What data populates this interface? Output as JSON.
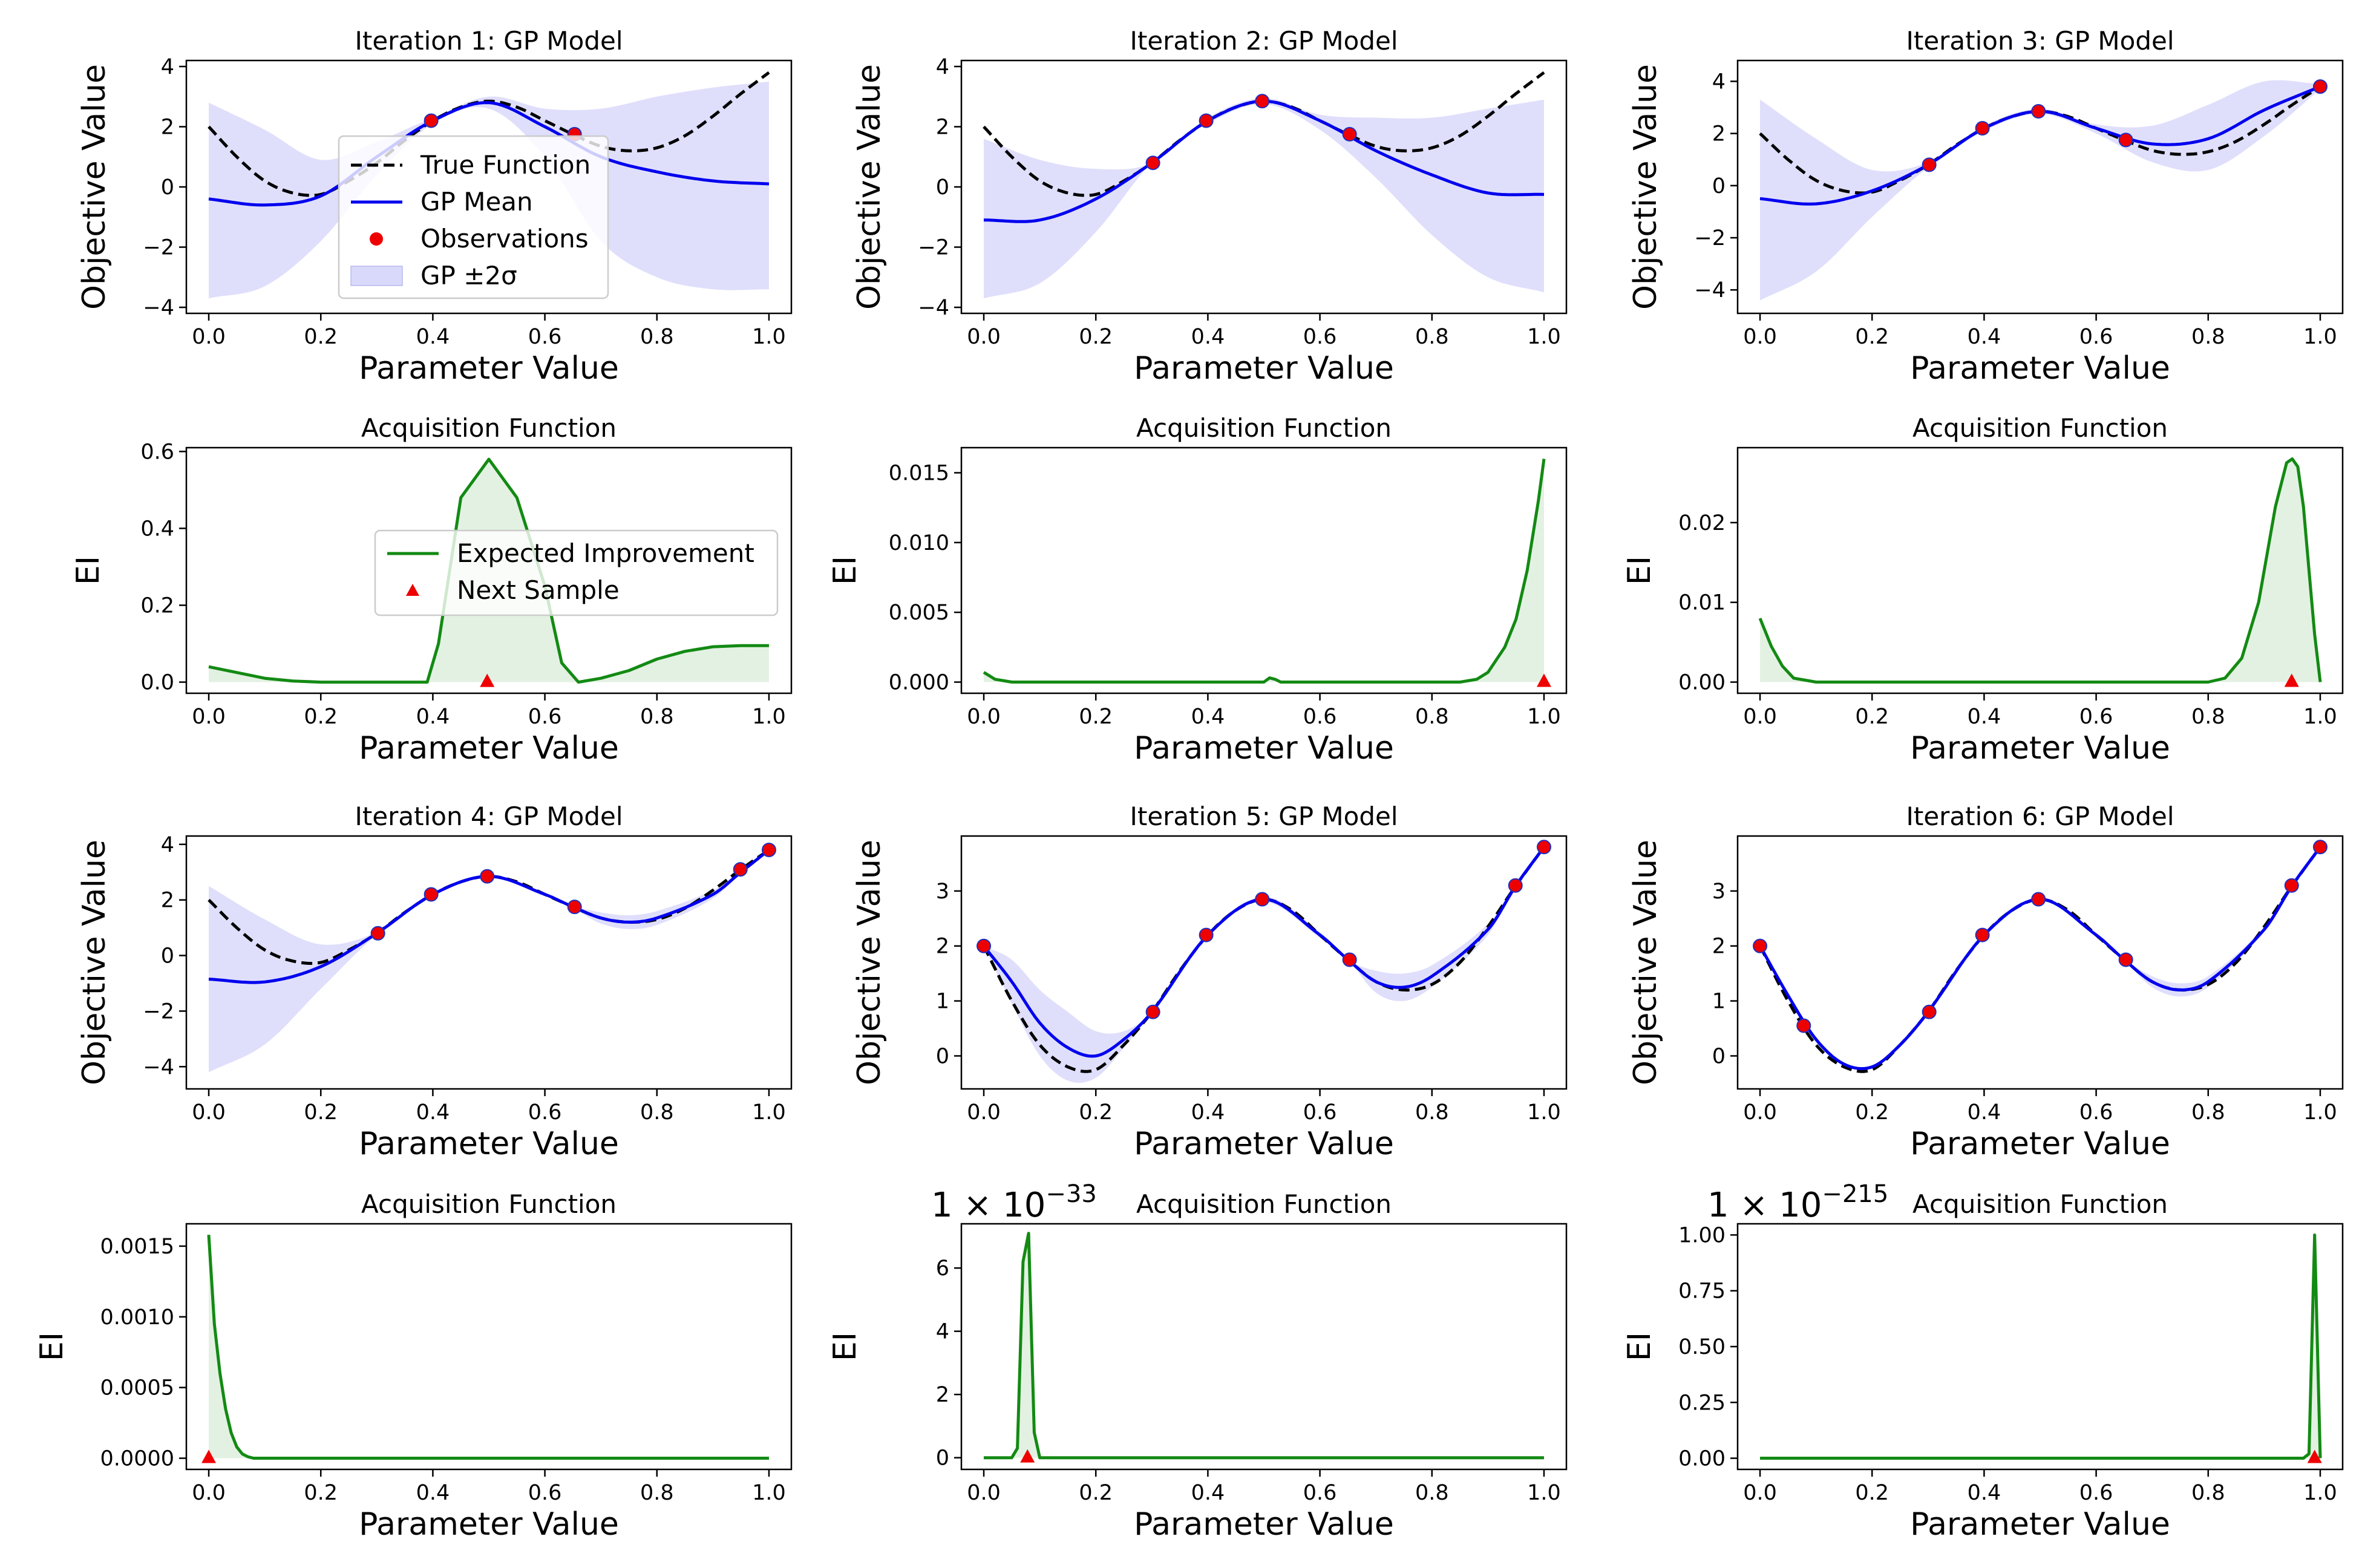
{
  "figure": {
    "legend_gp": {
      "true_function": "True Function",
      "gp_mean": "GP Mean",
      "observations": "Observations",
      "gp_band": "GP ±2σ"
    },
    "legend_acq": {
      "ei": "Expected Improvement",
      "next_sample": "Next Sample"
    },
    "colors": {
      "true_function": "#000000",
      "gp_mean": "#0000ee",
      "gp_band": "#d9d9fb",
      "observation": "#ee0000",
      "ei_line": "#138a13",
      "ei_fill": "#e3f1e3",
      "next_sample": "#ee0000"
    }
  },
  "chart_data": [
    {
      "type": "line",
      "panel": "gp",
      "title": "Iteration 1: GP Model",
      "xlabel": "Parameter Value",
      "ylabel": "Objective Value",
      "xlim": [
        -0.04,
        1.04
      ],
      "ylim": [
        -4.2,
        4.2
      ],
      "xticks": [
        0,
        0.2,
        0.4,
        0.6,
        0.8,
        1.0
      ],
      "xtick_labels": [
        "0.0",
        "0.2",
        "0.4",
        "0.6",
        "0.8",
        "1.0"
      ],
      "yticks": [
        -4,
        -2,
        0,
        2,
        4
      ],
      "ytick_labels": [
        "−4",
        "−2",
        "0",
        "2",
        "4"
      ],
      "legend": "center",
      "x": [
        0.0,
        0.1,
        0.2,
        0.3,
        0.4,
        0.5,
        0.6,
        0.7,
        0.8,
        0.9,
        1.0
      ],
      "gp_mean": [
        -0.4,
        -0.6,
        -0.3,
        1.0,
        2.2,
        2.8,
        2.0,
        1.0,
        0.5,
        0.2,
        0.1
      ],
      "gp_upper": [
        2.8,
        1.9,
        0.9,
        1.5,
        2.3,
        3.0,
        2.6,
        2.6,
        3.0,
        3.3,
        3.5
      ],
      "gp_lower": [
        -3.7,
        -3.3,
        -1.8,
        0.4,
        2.1,
        2.6,
        1.0,
        -1.8,
        -3.0,
        -3.4,
        -3.4
      ],
      "observations": {
        "x": [
          0.397,
          0.653
        ],
        "y": [
          2.2,
          1.75
        ]
      }
    },
    {
      "type": "line",
      "panel": "gp",
      "title": "Iteration 2: GP Model",
      "xlabel": "Parameter Value",
      "ylabel": "Objective Value",
      "xlim": [
        -0.04,
        1.04
      ],
      "ylim": [
        -4.2,
        4.2
      ],
      "xticks": [
        0,
        0.2,
        0.4,
        0.6,
        0.8,
        1.0
      ],
      "xtick_labels": [
        "0.0",
        "0.2",
        "0.4",
        "0.6",
        "0.8",
        "1.0"
      ],
      "yticks": [
        -4,
        -2,
        0,
        2,
        4
      ],
      "ytick_labels": [
        "−4",
        "−2",
        "0",
        "2",
        "4"
      ],
      "x": [
        0.0,
        0.1,
        0.2,
        0.3,
        0.4,
        0.5,
        0.6,
        0.7,
        0.8,
        0.9,
        1.0
      ],
      "gp_mean": [
        -1.1,
        -1.1,
        -0.4,
        0.8,
        2.2,
        2.85,
        2.2,
        1.2,
        0.4,
        -0.2,
        -0.25
      ],
      "gp_upper": [
        1.6,
        0.9,
        0.6,
        0.8,
        2.3,
        2.95,
        2.4,
        2.3,
        2.3,
        2.6,
        2.9
      ],
      "gp_lower": [
        -3.7,
        -3.2,
        -1.5,
        0.8,
        2.1,
        2.75,
        1.9,
        0.3,
        -1.6,
        -3.0,
        -3.5
      ],
      "observations": {
        "x": [
          0.302,
          0.397,
          0.497,
          0.653
        ],
        "y": [
          0.8,
          2.2,
          2.85,
          1.75
        ]
      }
    },
    {
      "type": "line",
      "panel": "gp",
      "title": "Iteration 3: GP Model",
      "xlabel": "Parameter Value",
      "ylabel": "Objective Value",
      "xlim": [
        -0.04,
        1.04
      ],
      "ylim": [
        -4.9,
        4.8
      ],
      "xticks": [
        0,
        0.2,
        0.4,
        0.6,
        0.8,
        1.0
      ],
      "xtick_labels": [
        "0.0",
        "0.2",
        "0.4",
        "0.6",
        "0.8",
        "1.0"
      ],
      "yticks": [
        -4,
        -2,
        0,
        2,
        4
      ],
      "ytick_labels": [
        "−4",
        "−2",
        "0",
        "2",
        "4"
      ],
      "x": [
        0.0,
        0.1,
        0.2,
        0.3,
        0.4,
        0.5,
        0.6,
        0.7,
        0.8,
        0.9,
        1.0
      ],
      "gp_mean": [
        -0.5,
        -0.7,
        -0.2,
        0.8,
        2.2,
        2.85,
        2.2,
        1.6,
        1.8,
        2.9,
        3.8
      ],
      "gp_upper": [
        3.3,
        1.8,
        0.6,
        0.9,
        2.3,
        2.95,
        2.35,
        2.3,
        3.1,
        4.0,
        3.9
      ],
      "gp_lower": [
        -4.4,
        -3.3,
        -1.2,
        0.7,
        2.1,
        2.75,
        2.0,
        0.9,
        0.6,
        1.9,
        3.7
      ],
      "observations": {
        "x": [
          0.302,
          0.397,
          0.497,
          0.653,
          1.0
        ],
        "y": [
          0.8,
          2.2,
          2.85,
          1.75,
          3.8
        ]
      }
    },
    {
      "type": "area",
      "panel": "acq",
      "title": "Acquisition Function",
      "xlabel": "Parameter Value",
      "ylabel": "EI",
      "xlim": [
        -0.04,
        1.04
      ],
      "ylim": [
        -0.029,
        0.61
      ],
      "xticks": [
        0,
        0.2,
        0.4,
        0.6,
        0.8,
        1.0
      ],
      "xtick_labels": [
        "0.0",
        "0.2",
        "0.4",
        "0.6",
        "0.8",
        "1.0"
      ],
      "yticks": [
        0,
        0.2,
        0.4,
        0.6
      ],
      "ytick_labels": [
        "0.0",
        "0.2",
        "0.4",
        "0.6"
      ],
      "legend": "center-right",
      "x": [
        0.0,
        0.05,
        0.1,
        0.15,
        0.2,
        0.3,
        0.39,
        0.41,
        0.45,
        0.5,
        0.55,
        0.6,
        0.63,
        0.66,
        0.7,
        0.75,
        0.8,
        0.85,
        0.9,
        0.95,
        1.0
      ],
      "values": [
        0.04,
        0.025,
        0.01,
        0.003,
        0.0,
        0.0,
        0.0,
        0.1,
        0.48,
        0.58,
        0.48,
        0.25,
        0.05,
        0.0,
        0.01,
        0.03,
        0.06,
        0.08,
        0.092,
        0.095,
        0.095
      ],
      "next_sample": {
        "x": 0.497,
        "y": 0.0
      }
    },
    {
      "type": "area",
      "panel": "acq",
      "title": "Acquisition Function",
      "xlabel": "Parameter Value",
      "ylabel": "EI",
      "xlim": [
        -0.04,
        1.04
      ],
      "ylim": [
        -0.0008,
        0.0168
      ],
      "xticks": [
        0,
        0.2,
        0.4,
        0.6,
        0.8,
        1.0
      ],
      "xtick_labels": [
        "0.0",
        "0.2",
        "0.4",
        "0.6",
        "0.8",
        "1.0"
      ],
      "yticks": [
        0,
        0.005,
        0.01,
        0.015
      ],
      "ytick_labels": [
        "0.000",
        "0.005",
        "0.010",
        "0.015"
      ],
      "x": [
        0.0,
        0.02,
        0.05,
        0.1,
        0.5,
        0.51,
        0.52,
        0.53,
        0.8,
        0.85,
        0.88,
        0.9,
        0.93,
        0.95,
        0.97,
        0.99,
        1.0
      ],
      "values": [
        0.0007,
        0.0002,
        0.0,
        0.0,
        0.0,
        0.0003,
        0.0002,
        0.0,
        0.0,
        0.0,
        0.0002,
        0.0007,
        0.0025,
        0.0045,
        0.008,
        0.013,
        0.016
      ],
      "next_sample": {
        "x": 1.0,
        "y": 0.0
      }
    },
    {
      "type": "area",
      "panel": "acq",
      "title": "Acquisition Function",
      "xlabel": "Parameter Value",
      "ylabel": "EI",
      "xlim": [
        -0.04,
        1.04
      ],
      "ylim": [
        -0.0014,
        0.0294
      ],
      "xticks": [
        0,
        0.2,
        0.4,
        0.6,
        0.8,
        1.0
      ],
      "xtick_labels": [
        "0.0",
        "0.2",
        "0.4",
        "0.6",
        "0.8",
        "1.0"
      ],
      "yticks": [
        0,
        0.01,
        0.02
      ],
      "ytick_labels": [
        "0.00",
        "0.01",
        "0.02"
      ],
      "x": [
        0.0,
        0.02,
        0.04,
        0.06,
        0.1,
        0.8,
        0.83,
        0.86,
        0.89,
        0.92,
        0.94,
        0.95,
        0.96,
        0.97,
        0.98,
        0.99,
        1.0
      ],
      "values": [
        0.008,
        0.0045,
        0.002,
        0.0005,
        0.0,
        0.0,
        0.0005,
        0.003,
        0.01,
        0.022,
        0.0275,
        0.028,
        0.027,
        0.022,
        0.014,
        0.006,
        0.0
      ],
      "next_sample": {
        "x": 0.949,
        "y": 0.0
      }
    },
    {
      "type": "line",
      "panel": "gp",
      "title": "Iteration 4: GP Model",
      "xlabel": "Parameter Value",
      "ylabel": "Objective Value",
      "xlim": [
        -0.04,
        1.04
      ],
      "ylim": [
        -4.8,
        4.3
      ],
      "xticks": [
        0,
        0.2,
        0.4,
        0.6,
        0.8,
        1.0
      ],
      "xtick_labels": [
        "0.0",
        "0.2",
        "0.4",
        "0.6",
        "0.8",
        "1.0"
      ],
      "yticks": [
        -4,
        -2,
        0,
        2,
        4
      ],
      "ytick_labels": [
        "−4",
        "−2",
        "0",
        "2",
        "4"
      ],
      "x": [
        0.0,
        0.1,
        0.2,
        0.3,
        0.4,
        0.5,
        0.6,
        0.65,
        0.7,
        0.75,
        0.8,
        0.9,
        0.95,
        1.0
      ],
      "gp_mean": [
        -0.85,
        -0.95,
        -0.4,
        0.8,
        2.2,
        2.85,
        2.2,
        1.75,
        1.35,
        1.2,
        1.35,
        2.2,
        3.0,
        3.8
      ],
      "gp_upper": [
        2.5,
        1.3,
        0.4,
        0.85,
        2.25,
        2.9,
        2.25,
        1.8,
        1.55,
        1.45,
        1.6,
        2.35,
        3.05,
        3.85
      ],
      "gp_lower": [
        -4.2,
        -3.2,
        -1.2,
        0.75,
        2.15,
        2.8,
        2.15,
        1.7,
        1.15,
        0.95,
        1.1,
        2.05,
        2.95,
        3.75
      ],
      "observations": {
        "x": [
          0.302,
          0.397,
          0.497,
          0.653,
          0.949,
          1.0
        ],
        "y": [
          0.8,
          2.2,
          2.85,
          1.75,
          3.1,
          3.8
        ]
      }
    },
    {
      "type": "line",
      "panel": "gp",
      "title": "Iteration 5: GP Model",
      "xlabel": "Parameter Value",
      "ylabel": "Objective Value",
      "xlim": [
        -0.04,
        1.04
      ],
      "ylim": [
        -0.6,
        4.0
      ],
      "xticks": [
        0,
        0.2,
        0.4,
        0.6,
        0.8,
        1.0
      ],
      "xtick_labels": [
        "0.0",
        "0.2",
        "0.4",
        "0.6",
        "0.8",
        "1.0"
      ],
      "yticks": [
        0,
        1,
        2,
        3
      ],
      "ytick_labels": [
        "0",
        "1",
        "2",
        "3"
      ],
      "x": [
        0.0,
        0.05,
        0.1,
        0.15,
        0.2,
        0.25,
        0.3,
        0.4,
        0.5,
        0.6,
        0.65,
        0.7,
        0.75,
        0.8,
        0.9,
        0.95,
        1.0
      ],
      "gp_mean": [
        2.0,
        1.35,
        0.6,
        0.15,
        0.0,
        0.3,
        0.8,
        2.2,
        2.85,
        2.2,
        1.75,
        1.35,
        1.25,
        1.45,
        2.3,
        3.1,
        3.8
      ],
      "gp_upper": [
        2.0,
        1.75,
        1.2,
        0.8,
        0.45,
        0.45,
        0.8,
        2.2,
        2.9,
        2.25,
        1.75,
        1.55,
        1.5,
        1.65,
        2.4,
        3.1,
        3.8
      ],
      "gp_lower": [
        2.0,
        0.95,
        0.0,
        -0.45,
        -0.4,
        0.15,
        0.8,
        2.2,
        2.8,
        2.15,
        1.75,
        1.15,
        1.0,
        1.25,
        2.2,
        3.1,
        3.8
      ],
      "observations": {
        "x": [
          0.0,
          0.302,
          0.397,
          0.497,
          0.653,
          0.949,
          1.0
        ],
        "y": [
          2.0,
          0.8,
          2.2,
          2.85,
          1.75,
          3.1,
          3.8
        ]
      }
    },
    {
      "type": "line",
      "panel": "gp",
      "title": "Iteration 6: GP Model",
      "xlabel": "Parameter Value",
      "ylabel": "Objective Value",
      "xlim": [
        -0.04,
        1.04
      ],
      "ylim": [
        -0.6,
        4.0
      ],
      "xticks": [
        0,
        0.2,
        0.4,
        0.6,
        0.8,
        1.0
      ],
      "xtick_labels": [
        "0.0",
        "0.2",
        "0.4",
        "0.6",
        "0.8",
        "1.0"
      ],
      "yticks": [
        0,
        1,
        2,
        3
      ],
      "ytick_labels": [
        "0",
        "1",
        "2",
        "3"
      ],
      "x": [
        0.0,
        0.05,
        0.1,
        0.15,
        0.2,
        0.25,
        0.3,
        0.4,
        0.5,
        0.6,
        0.65,
        0.7,
        0.75,
        0.8,
        0.9,
        0.95,
        1.0
      ],
      "gp_mean": [
        2.0,
        1.1,
        0.3,
        -0.15,
        -0.2,
        0.2,
        0.8,
        2.2,
        2.85,
        2.2,
        1.75,
        1.35,
        1.2,
        1.35,
        2.3,
        3.1,
        3.8
      ],
      "gp_upper": [
        2.0,
        1.12,
        0.32,
        -0.13,
        -0.18,
        0.22,
        0.82,
        2.22,
        2.87,
        2.22,
        1.77,
        1.45,
        1.32,
        1.45,
        2.34,
        3.1,
        3.8
      ],
      "gp_lower": [
        2.0,
        1.08,
        0.28,
        -0.17,
        -0.22,
        0.18,
        0.78,
        2.18,
        2.83,
        2.18,
        1.73,
        1.25,
        1.08,
        1.25,
        2.26,
        3.1,
        3.8
      ],
      "observations": {
        "x": [
          0.0,
          0.078,
          0.302,
          0.397,
          0.497,
          0.653,
          0.949,
          1.0
        ],
        "y": [
          2.0,
          0.55,
          0.8,
          2.2,
          2.85,
          1.75,
          3.1,
          3.8
        ]
      }
    },
    {
      "type": "area",
      "panel": "acq",
      "title": "Acquisition Function",
      "xlabel": "Parameter Value",
      "ylabel": "EI",
      "xlim": [
        -0.04,
        1.04
      ],
      "ylim": [
        -7.9e-05,
        0.001658
      ],
      "xticks": [
        0,
        0.2,
        0.4,
        0.6,
        0.8,
        1.0
      ],
      "xtick_labels": [
        "0.0",
        "0.2",
        "0.4",
        "0.6",
        "0.8",
        "1.0"
      ],
      "yticks": [
        0,
        0.0005,
        0.001,
        0.0015
      ],
      "ytick_labels": [
        "0.0000",
        "0.0005",
        "0.0010",
        "0.0015"
      ],
      "x": [
        0.0,
        0.01,
        0.02,
        0.03,
        0.04,
        0.05,
        0.06,
        0.07,
        0.08,
        1.0
      ],
      "values": [
        0.00158,
        0.00095,
        0.0006,
        0.00035,
        0.00018,
        8e-05,
        3e-05,
        1e-05,
        0.0,
        0.0
      ],
      "next_sample": {
        "x": 0.0,
        "y": 0.0
      }
    },
    {
      "type": "area",
      "panel": "acq",
      "title": "Acquisition Function",
      "xlabel": "Parameter Value",
      "ylabel": "EI",
      "offset": "1 × 10−33",
      "xlim": [
        -0.04,
        1.04
      ],
      "ylim": [
        -0.37,
        7.4
      ],
      "xticks": [
        0,
        0.2,
        0.4,
        0.6,
        0.8,
        1.0
      ],
      "xtick_labels": [
        "0.0",
        "0.2",
        "0.4",
        "0.6",
        "0.8",
        "1.0"
      ],
      "yticks": [
        0,
        2,
        4,
        6
      ],
      "ytick_labels": [
        "0",
        "2",
        "4",
        "6"
      ],
      "x": [
        0.0,
        0.05,
        0.06,
        0.07,
        0.08,
        0.09,
        0.1,
        1.0
      ],
      "values": [
        0.0,
        0.0,
        0.3,
        6.2,
        7.1,
        0.8,
        0.0,
        0.0
      ],
      "next_sample": {
        "x": 0.078,
        "y": 0.0
      }
    },
    {
      "type": "area",
      "panel": "acq",
      "title": "Acquisition Function",
      "xlabel": "Parameter Value",
      "ylabel": "EI",
      "offset": "1 × 10−215",
      "xlim": [
        -0.04,
        1.04
      ],
      "ylim": [
        -0.05,
        1.05
      ],
      "xticks": [
        0,
        0.2,
        0.4,
        0.6,
        0.8,
        1.0
      ],
      "xtick_labels": [
        "0.0",
        "0.2",
        "0.4",
        "0.6",
        "0.8",
        "1.0"
      ],
      "yticks": [
        0,
        0.25,
        0.5,
        0.75,
        1.0
      ],
      "ytick_labels": [
        "0.00",
        "0.25",
        "0.50",
        "0.75",
        "1.00"
      ],
      "x": [
        0.0,
        0.97,
        0.98,
        0.99,
        1.0
      ],
      "values": [
        0.0,
        0.0,
        0.02,
        1.0,
        0.0
      ],
      "next_sample": {
        "x": 0.99,
        "y": 0.0
      }
    }
  ]
}
